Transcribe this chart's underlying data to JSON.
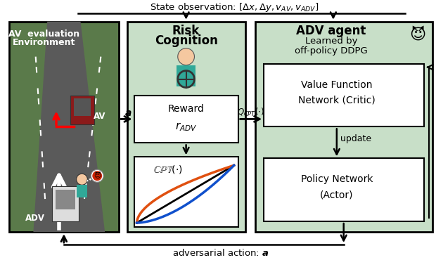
{
  "bg_color": "#ffffff",
  "light_green": "#c8dfc8",
  "env_green": "#6b8f5e",
  "road_gray": "#5a5a5a",
  "road_dark": "#4a4a4a",
  "grass_green": "#5a7a4a",
  "state_obs": "State observation: [$\\Delta x,\\Delta y, v_{AV},v_{ADV}$]",
  "adv_action": "adversarial action: $\\boldsymbol{a}$",
  "av_eval_line1": "AV  evaluation",
  "av_eval_line2": "Environment",
  "av_label": "AV",
  "adv_label": "ADV",
  "a_label": "$\\boldsymbol{a}$",
  "risk_line1": "Risk",
  "risk_line2": "Cognition",
  "reward_line1": "Reward",
  "reward_line2": "$r_{ADV}$",
  "cpt_label": "$\\mathbb{CPT}(\\cdot)$",
  "adv_agent_line1": "ADV agent",
  "adv_agent_line2": "Learned by",
  "adv_agent_line3": "off-policy DDPG",
  "vfn_line1": "Value Function",
  "vfn_line2": "Network (Critic)",
  "pn_line1": "Policy Network",
  "pn_line2": "(Actor)",
  "q_cpt": "$Q_{CPT}(\\cdot)$",
  "update": "update"
}
